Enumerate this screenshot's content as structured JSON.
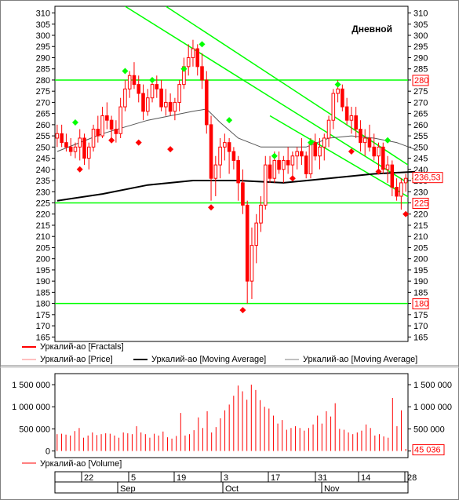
{
  "chart_data": [
    {
      "type": "candlestick",
      "title": "Дневной",
      "ylim": [
        163,
        313
      ],
      "y_ticks": [
        165,
        170,
        175,
        180,
        185,
        190,
        195,
        200,
        205,
        210,
        215,
        220,
        225,
        230,
        235,
        240,
        245,
        250,
        255,
        260,
        265,
        270,
        275,
        280,
        285,
        290,
        295,
        300,
        305,
        310
      ],
      "candles": [
        [
          254,
          260,
          250,
          256
        ],
        [
          256,
          260,
          250,
          252
        ],
        [
          252,
          256,
          248,
          250
        ],
        [
          250,
          254,
          246,
          248
        ],
        [
          248,
          252,
          245,
          250
        ],
        [
          250,
          258,
          244,
          254
        ],
        [
          254,
          256,
          242,
          245
        ],
        [
          245,
          252,
          240,
          250
        ],
        [
          250,
          260,
          248,
          258
        ],
        [
          258,
          264,
          252,
          255
        ],
        [
          255,
          268,
          254,
          264
        ],
        [
          264,
          270,
          258,
          262
        ],
        [
          262,
          264,
          254,
          258
        ],
        [
          258,
          262,
          252,
          256
        ],
        [
          256,
          272,
          254,
          268
        ],
        [
          268,
          280,
          266,
          276
        ],
        [
          276,
          284,
          272,
          282
        ],
        [
          282,
          288,
          276,
          278
        ],
        [
          278,
          282,
          270,
          274
        ],
        [
          274,
          278,
          262,
          266
        ],
        [
          266,
          276,
          264,
          272
        ],
        [
          272,
          280,
          270,
          278
        ],
        [
          278,
          282,
          272,
          276
        ],
        [
          276,
          280,
          266,
          268
        ],
        [
          268,
          276,
          264,
          270
        ],
        [
          270,
          274,
          264,
          266
        ],
        [
          266,
          272,
          262,
          270
        ],
        [
          270,
          280,
          266,
          278
        ],
        [
          278,
          290,
          276,
          286
        ],
        [
          286,
          296,
          282,
          290
        ],
        [
          290,
          298,
          286,
          294
        ],
        [
          294,
          296,
          282,
          286
        ],
        [
          286,
          292,
          276,
          280
        ],
        [
          280,
          284,
          256,
          260
        ],
        [
          260,
          264,
          226,
          236
        ],
        [
          236,
          246,
          228,
          242
        ],
        [
          242,
          254,
          236,
          250
        ],
        [
          250,
          256,
          244,
          252
        ],
        [
          252,
          254,
          238,
          248
        ],
        [
          248,
          250,
          240,
          244
        ],
        [
          244,
          246,
          226,
          234
        ],
        [
          234,
          240,
          220,
          224
        ],
        [
          224,
          226,
          180,
          190
        ],
        [
          190,
          214,
          182,
          206
        ],
        [
          206,
          220,
          198,
          216
        ],
        [
          216,
          228,
          212,
          224
        ],
        [
          224,
          246,
          222,
          242
        ],
        [
          242,
          246,
          234,
          236
        ],
        [
          236,
          248,
          234,
          244
        ],
        [
          244,
          248,
          238,
          240
        ],
        [
          240,
          246,
          234,
          244
        ],
        [
          244,
          250,
          238,
          242
        ],
        [
          242,
          248,
          236,
          246
        ],
        [
          246,
          250,
          240,
          248
        ],
        [
          248,
          254,
          242,
          246
        ],
        [
          246,
          248,
          236,
          238
        ],
        [
          238,
          254,
          236,
          252
        ],
        [
          252,
          256,
          244,
          246
        ],
        [
          246,
          254,
          240,
          250
        ],
        [
          250,
          256,
          244,
          254
        ],
        [
          254,
          264,
          250,
          262
        ],
        [
          262,
          276,
          258,
          274
        ],
        [
          274,
          280,
          270,
          276
        ],
        [
          276,
          278,
          266,
          268
        ],
        [
          268,
          272,
          260,
          262
        ],
        [
          262,
          268,
          256,
          264
        ],
        [
          264,
          268,
          254,
          258
        ],
        [
          258,
          262,
          248,
          252
        ],
        [
          252,
          258,
          246,
          254
        ],
        [
          254,
          260,
          248,
          250
        ],
        [
          250,
          256,
          244,
          246
        ],
        [
          246,
          252,
          240,
          250
        ],
        [
          250,
          252,
          238,
          240
        ],
        [
          240,
          246,
          234,
          242
        ],
        [
          242,
          244,
          228,
          232
        ],
        [
          232,
          236,
          226,
          228
        ],
        [
          228,
          236,
          222,
          234
        ],
        [
          234,
          238,
          230,
          236
        ]
      ],
      "moving_average_1": [
        [
          0,
          248
        ],
        [
          10,
          256
        ],
        [
          20,
          262
        ],
        [
          30,
          266
        ],
        [
          33,
          267
        ],
        [
          36,
          261
        ],
        [
          40,
          254
        ],
        [
          45,
          250
        ],
        [
          50,
          250
        ],
        [
          55,
          250
        ],
        [
          60,
          254
        ],
        [
          65,
          255
        ],
        [
          70,
          254
        ],
        [
          75,
          252
        ],
        [
          79,
          249
        ]
      ],
      "moving_average_2": [
        [
          0,
          226
        ],
        [
          10,
          229
        ],
        [
          20,
          233
        ],
        [
          30,
          235
        ],
        [
          40,
          235
        ],
        [
          50,
          234
        ],
        [
          60,
          236
        ],
        [
          70,
          238
        ],
        [
          79,
          239
        ]
      ],
      "fractals_up": [
        [
          4,
          261
        ],
        [
          15,
          284
        ],
        [
          21,
          280
        ],
        [
          28,
          285
        ],
        [
          32,
          296
        ],
        [
          38,
          262
        ],
        [
          48,
          246
        ],
        [
          56,
          252
        ],
        [
          62,
          278
        ],
        [
          73,
          253
        ],
        [
          79,
          236
        ]
      ],
      "fractals_down": [
        [
          5,
          240
        ],
        [
          12,
          253
        ],
        [
          18,
          252
        ],
        [
          25,
          249
        ],
        [
          34,
          223
        ],
        [
          41,
          177
        ],
        [
          52,
          236
        ],
        [
          65,
          248
        ],
        [
          71,
          239
        ],
        [
          77,
          220
        ]
      ],
      "resistance_levels": [
        280,
        225,
        180
      ],
      "channel_lines": [
        [
          [
            15,
            313
          ],
          [
            79,
            232
          ]
        ],
        [
          [
            24,
            313
          ],
          [
            79,
            240
          ]
        ],
        [
          [
            47,
            264
          ],
          [
            79,
            226
          ]
        ]
      ],
      "price_tags": [
        "280",
        "236,53",
        "225",
        "180"
      ],
      "legend": [
        "Уркалий-ао [Fractals]",
        "Уркалий-ао [Price]",
        "Уркалий-ао [Moving Average]",
        "Уркалий-ао [Moving Average]"
      ],
      "colors": {
        "candle": "#ff0000",
        "fractal_up": "#00ff00",
        "fractal_down": "#ff0000",
        "level": "#00ff00",
        "ma1": "#000000",
        "ma2": "#555555"
      }
    },
    {
      "type": "bar",
      "ylim": [
        -150000,
        1750000
      ],
      "y_ticks": [
        0,
        500000,
        1000000,
        1500000
      ],
      "y_tick_labels": [
        "0",
        "500 000",
        "1 000 000",
        "1 500 000"
      ],
      "right_tick_labels": [
        "1 500 000",
        "1 000 000",
        "500 000"
      ],
      "values": [
        380000,
        390000,
        370000,
        350000,
        450000,
        520000,
        300000,
        350000,
        420000,
        360000,
        380000,
        400000,
        390000,
        350000,
        300000,
        420000,
        400000,
        380000,
        560000,
        420000,
        380000,
        300000,
        390000,
        350000,
        440000,
        310000,
        280000,
        340000,
        860000,
        350000,
        380000,
        470000,
        760000,
        520000,
        900000,
        420000,
        540000,
        740000,
        920000,
        1050000,
        1250000,
        1480000,
        1350000,
        1160000,
        1500000,
        1380000,
        1150000,
        1000000,
        960000,
        800000,
        620000,
        700000,
        480000,
        520000,
        560000,
        520000,
        460000,
        520000,
        600000,
        800000,
        620000,
        900000,
        780000,
        1080000,
        500000,
        480000,
        420000,
        380000,
        420000,
        460000,
        600000,
        520000,
        350000,
        380000,
        330000,
        300000,
        1200000,
        560000,
        920000,
        45036
      ],
      "last_value_tag": "45 036",
      "legend": [
        "Уркалий-ао [Volume]"
      ]
    }
  ],
  "x_axis": {
    "day_labels": [
      "22",
      "5",
      "19",
      "3",
      "17",
      "31",
      "14",
      "28"
    ],
    "month_labels": [
      "Sep",
      "Oct",
      "Nov"
    ]
  }
}
